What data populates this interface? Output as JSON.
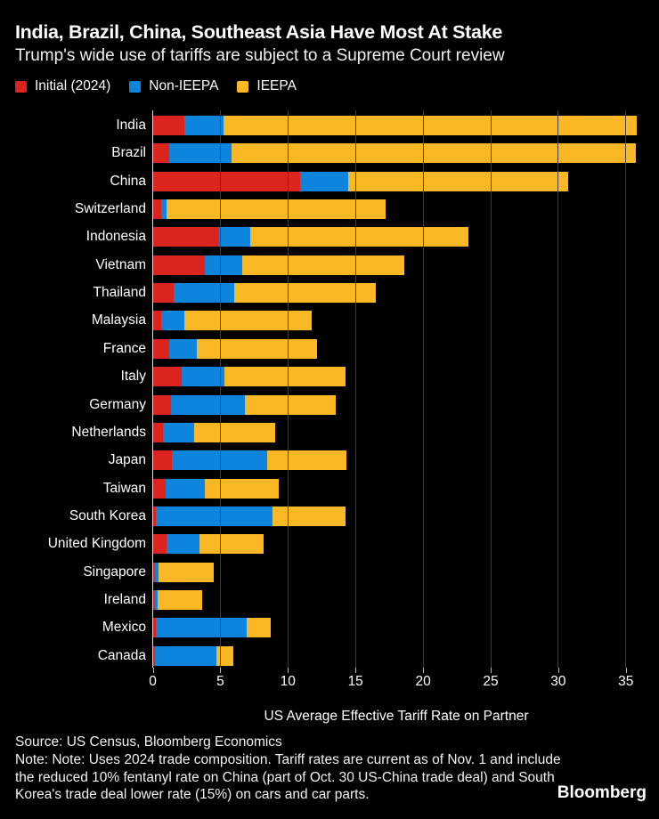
{
  "header": {
    "title": "India, Brazil, China, Southeast Asia Have Most At Stake",
    "subtitle": "Trump's wide use of tariffs are subject to a Supreme Court review"
  },
  "legend": {
    "items": [
      {
        "label": "Initial (2024)",
        "color": "#dc241f"
      },
      {
        "label": "Non-IEEPA",
        "color": "#0d85dc"
      },
      {
        "label": "IEEPA",
        "color": "#fbb724"
      }
    ]
  },
  "chart_data": {
    "type": "bar",
    "orientation": "horizontal",
    "stacked": true,
    "title": "India, Brazil, China, Southeast Asia Have Most At Stake",
    "subtitle": "Trump's wide use of tariffs are subject to a Supreme Court review",
    "xlabel": "US Average Effective Tariff Rate on Partner",
    "xlim": [
      0,
      36.2
    ],
    "xticks": [
      0,
      5,
      10,
      15,
      20,
      25,
      30,
      35
    ],
    "grid": "vertical",
    "legend_position": "top",
    "background": "#000000",
    "categories": [
      "India",
      "Brazil",
      "China",
      "Switzerland",
      "Indonesia",
      "Vietnam",
      "Thailand",
      "Malaysia",
      "France",
      "Italy",
      "Germany",
      "Netherlands",
      "Japan",
      "Taiwan",
      "South Korea",
      "United Kingdom",
      "Singapore",
      "Ireland",
      "Mexico",
      "Canada"
    ],
    "series": [
      {
        "name": "Initial (2024)",
        "color": "#dc241f",
        "values": [
          2.3,
          1.2,
          10.9,
          0.6,
          4.9,
          3.8,
          1.5,
          0.6,
          1.2,
          2.1,
          1.3,
          0.7,
          1.4,
          0.9,
          0.2,
          1.0,
          0.1,
          0.1,
          0.2,
          0.1
        ]
      },
      {
        "name": "Non-IEEPA",
        "color": "#0d85dc",
        "values": [
          2.9,
          4.6,
          3.5,
          0.4,
          2.3,
          2.8,
          4.5,
          1.7,
          2.0,
          3.2,
          5.5,
          2.3,
          7.0,
          2.9,
          8.6,
          2.4,
          0.3,
          0.2,
          6.7,
          4.6
        ]
      },
      {
        "name": "IEEPA",
        "color": "#fbb724",
        "values": [
          30.6,
          29.9,
          16.3,
          16.2,
          16.1,
          12.0,
          10.5,
          9.4,
          8.9,
          8.9,
          6.7,
          6.0,
          5.9,
          5.5,
          5.4,
          4.8,
          4.1,
          3.3,
          1.8,
          1.2
        ]
      }
    ],
    "totals": [
      35.8,
      35.7,
      30.7,
      17.2,
      23.3,
      18.6,
      16.5,
      11.7,
      12.1,
      14.2,
      13.5,
      9.0,
      14.3,
      9.3,
      14.2,
      8.2,
      4.5,
      3.6,
      8.7,
      5.9
    ]
  },
  "footer": {
    "source": "Source: US Census, Bloomberg Economics",
    "note": "Note: Note: Uses 2024 trade composition. Tariff rates are current as of Nov. 1 and include the reduced 10% fentanyl rate on China (part of Oct. 30 US-China trade deal) and South Korea's trade deal lower rate (15%) on cars and car parts.",
    "logo": "Bloomberg"
  }
}
